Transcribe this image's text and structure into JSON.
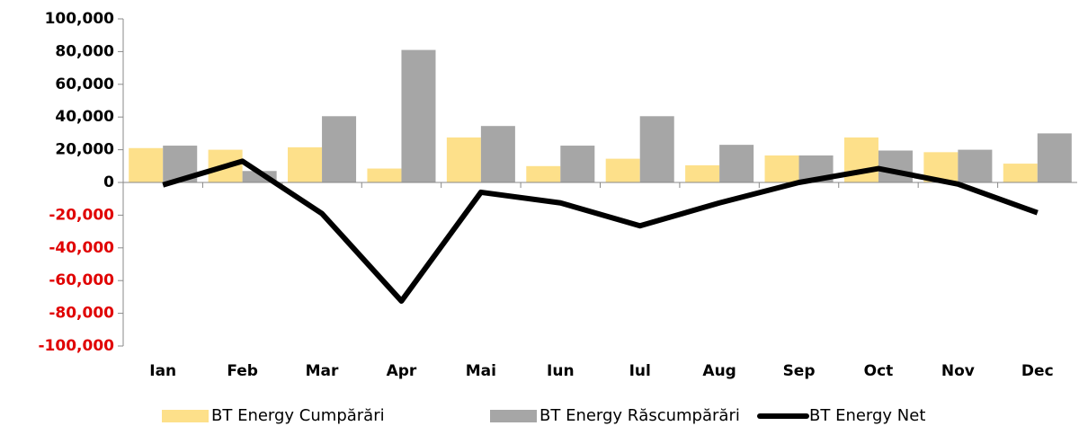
{
  "chart_data": {
    "type": "bar",
    "categories": [
      "Ian",
      "Feb",
      "Mar",
      "Apr",
      "Mai",
      "Iun",
      "Iul",
      "Aug",
      "Sep",
      "Oct",
      "Nov",
      "Dec"
    ],
    "series": [
      {
        "name": "BT Energy Cumpărări",
        "color": "#fde08a",
        "values": [
          21000,
          20000,
          21500,
          8500,
          27500,
          10000,
          14500,
          10500,
          16500,
          27500,
          18500,
          11500
        ]
      },
      {
        "name": "BT Energy Răscumpărări",
        "color": "#a6a6a6",
        "values": [
          22500,
          7000,
          40500,
          81000,
          34500,
          22500,
          40500,
          23000,
          16500,
          19500,
          20000,
          30000
        ]
      },
      {
        "name": "BT Energy Net",
        "color": "#000000",
        "type": "line",
        "values": [
          -1500,
          13000,
          -19000,
          -72500,
          -6000,
          -12500,
          -26500,
          -12500,
          0,
          8500,
          -1000,
          -18500
        ]
      }
    ],
    "ylim": [
      -100000,
      100000
    ],
    "yticks": [
      {
        "value": -100000,
        "label": "-100,000"
      },
      {
        "value": -80000,
        "label": "-80,000"
      },
      {
        "value": -60000,
        "label": "-60,000"
      },
      {
        "value": -40000,
        "label": "-40,000"
      },
      {
        "value": -20000,
        "label": "-20,000"
      },
      0,
      {
        "value": 20000,
        "label": "20,000"
      },
      {
        "value": 40000,
        "label": "40,000"
      },
      {
        "value": 60000,
        "label": "60,000"
      },
      {
        "value": 80000,
        "label": "80,000"
      },
      {
        "value": 100000,
        "label": "100,000"
      }
    ],
    "negative_tick_color": "#e00000",
    "legend": "bottom"
  }
}
